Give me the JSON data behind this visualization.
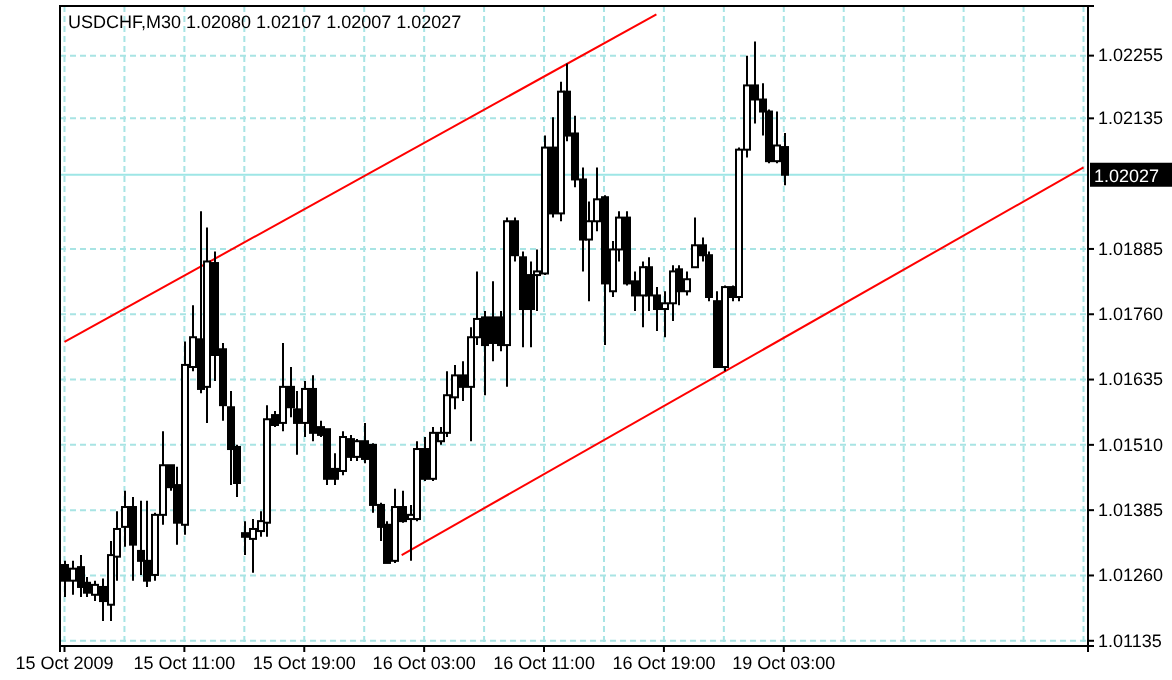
{
  "chart_data": {
    "type": "candlestick",
    "title": "USDCHF,M30  1.02080 1.02107 1.02007 1.02027",
    "categories": [
      "15 Oct 2009",
      null,
      null,
      null,
      null,
      null,
      null,
      null,
      null,
      null,
      null,
      null,
      null,
      null,
      null,
      null,
      "15 Oct 11:00",
      null,
      null,
      null,
      null,
      null,
      null,
      null,
      null,
      null,
      null,
      null,
      null,
      null,
      null,
      null,
      "15 Oct 19:00",
      null,
      null,
      null,
      null,
      null,
      null,
      null,
      null,
      null,
      null,
      null,
      null,
      null,
      null,
      null,
      "16 Oct 03:00",
      null,
      null,
      null,
      null,
      null,
      null,
      null,
      null,
      null,
      null,
      null,
      null,
      null,
      null,
      null,
      "16 Oct 11:00",
      null,
      null,
      null,
      null,
      null,
      null,
      null,
      null,
      null,
      null,
      null,
      null,
      null,
      null,
      null,
      "16 Oct 19:00",
      null,
      null,
      null,
      null,
      null,
      null,
      null,
      null,
      null,
      null,
      null,
      null,
      null,
      null,
      null,
      "19 Oct 03:00",
      null,
      null,
      null,
      null,
      null,
      null,
      null,
      null,
      null,
      null,
      null,
      null,
      null,
      null,
      null,
      null,
      null,
      null,
      null,
      null,
      null,
      null,
      null,
      null,
      null,
      null,
      null,
      null,
      null,
      null,
      null,
      null,
      null,
      null,
      null,
      null,
      null,
      null,
      null,
      null
    ],
    "ohlc": [
      [
        1.0128,
        1.01288,
        1.01219,
        1.0125
      ],
      [
        1.0125,
        1.01288,
        1.01223,
        1.01273
      ],
      [
        1.01276,
        1.01299,
        1.01219,
        1.01238
      ],
      [
        1.01246,
        1.01257,
        1.01219,
        1.01227
      ],
      [
        1.01223,
        1.0125,
        1.01211,
        1.01242
      ],
      [
        1.01238,
        1.01254,
        1.01173,
        1.01211
      ],
      [
        1.01204,
        1.01326,
        1.01173,
        1.01299
      ],
      [
        1.01296,
        1.01383,
        1.0125,
        1.01349
      ],
      [
        1.01353,
        1.01422,
        1.01315,
        1.01391
      ],
      [
        1.01391,
        1.0141,
        1.0125,
        1.01319
      ],
      [
        1.01307,
        1.01403,
        1.01261,
        1.01288
      ],
      [
        1.01288,
        1.01403,
        1.01238,
        1.0125
      ],
      [
        1.01261,
        1.0138,
        1.0125,
        1.01376
      ],
      [
        1.01376,
        1.01536,
        1.01357,
        1.01471
      ],
      [
        1.01471,
        1.01471,
        1.01422,
        1.01429
      ],
      [
        1.01433,
        1.01468,
        1.01319,
        1.01361
      ],
      [
        1.01357,
        1.01708,
        1.01338,
        1.01663
      ],
      [
        1.01659,
        1.01777,
        1.01651,
        1.01716
      ],
      [
        1.01712,
        1.01957,
        1.01609,
        1.01617
      ],
      [
        1.01621,
        1.01926,
        1.01552,
        1.01861
      ],
      [
        1.01858,
        1.0188,
        1.01632,
        1.01682
      ],
      [
        1.01693,
        1.01705,
        1.01556,
        1.01586
      ],
      [
        1.01582,
        1.01613,
        1.01433,
        1.01502
      ],
      [
        1.01506,
        1.0151,
        1.0141,
        1.01437
      ],
      [
        1.01341,
        1.01364,
        1.01299,
        1.01334
      ],
      [
        1.0133,
        1.01368,
        1.01265,
        1.01349
      ],
      [
        1.01345,
        1.01383,
        1.01334,
        1.01364
      ],
      [
        1.01361,
        1.01586,
        1.01334,
        1.01559
      ],
      [
        1.01567,
        1.01575,
        1.01544,
        1.01548
      ],
      [
        1.01552,
        1.01705,
        1.01536,
        1.01621
      ],
      [
        1.01621,
        1.01659,
        1.01563,
        1.01582
      ],
      [
        1.01578,
        1.01613,
        1.01491,
        1.01552
      ],
      [
        1.01552,
        1.01632,
        1.01525,
        1.01617
      ],
      [
        1.01617,
        1.01643,
        1.01517,
        1.01533
      ],
      [
        1.01544,
        1.01556,
        1.01525,
        1.01529
      ],
      [
        1.0154,
        1.0154,
        1.01433,
        1.01445
      ],
      [
        1.01464,
        1.01494,
        1.01433,
        1.01445
      ],
      [
        1.0146,
        1.01536,
        1.01452,
        1.01525
      ],
      [
        1.01521,
        1.01529,
        1.01479,
        1.01487
      ],
      [
        1.01487,
        1.01521,
        1.01479,
        1.01517
      ],
      [
        1.01517,
        1.01552,
        1.01475,
        1.01483
      ],
      [
        1.0151,
        1.01513,
        1.0138,
        1.01395
      ],
      [
        1.01395,
        1.01399,
        1.01326,
        1.01353
      ],
      [
        1.01357,
        1.01364,
        1.01284,
        1.01284
      ],
      [
        1.01288,
        1.01426,
        1.01284,
        1.01391
      ],
      [
        1.01391,
        1.01422,
        1.01361,
        1.01364
      ],
      [
        1.01368,
        1.01395,
        1.01288,
        1.01376
      ],
      [
        1.01368,
        1.01517,
        1.01364,
        1.01502
      ],
      [
        1.01502,
        1.01525,
        1.01441,
        1.01445
      ],
      [
        1.01445,
        1.01544,
        1.01441,
        1.01533
      ],
      [
        1.01517,
        1.01544,
        1.0151,
        1.01533
      ],
      [
        1.01533,
        1.01651,
        1.01525,
        1.01605
      ],
      [
        1.01601,
        1.01663,
        1.01578,
        1.01643
      ],
      [
        1.01643,
        1.0167,
        1.01594,
        1.01621
      ],
      [
        1.01621,
        1.01735,
        1.01517,
        1.01716
      ],
      [
        1.01716,
        1.01842,
        1.01701,
        1.01751
      ],
      [
        1.01754,
        1.01766,
        1.01605,
        1.01701
      ],
      [
        1.01754,
        1.01823,
        1.0167,
        1.01705
      ],
      [
        1.01754,
        1.01766,
        1.01689,
        1.01701
      ],
      [
        1.01701,
        1.01945,
        1.01621,
        1.01938
      ],
      [
        1.01938,
        1.01945,
        1.01861,
        1.01873
      ],
      [
        1.01869,
        1.0188,
        1.01697,
        1.0177
      ],
      [
        1.01835,
        1.01861,
        1.01697,
        1.0177
      ],
      [
        1.01835,
        1.01884,
        1.01766,
        1.01842
      ],
      [
        1.01838,
        1.02102,
        1.01835,
        1.02079
      ],
      [
        1.02079,
        1.02137,
        1.01945,
        1.01953
      ],
      [
        1.01953,
        1.02205,
        1.01938,
        1.02186
      ],
      [
        1.02186,
        1.0224,
        1.02091,
        1.02102
      ],
      [
        1.02106,
        1.0214,
        1.02003,
        1.02018
      ],
      [
        1.02018,
        1.02041,
        1.01842,
        1.01903
      ],
      [
        1.01903,
        1.01976,
        1.01785,
        1.01938
      ],
      [
        1.01938,
        1.02041,
        1.01919,
        1.0198
      ],
      [
        1.01984,
        1.01988,
        1.01701,
        1.01819
      ],
      [
        1.01804,
        1.019,
        1.01793,
        1.01884
      ],
      [
        1.01884,
        1.01957,
        1.01861,
        1.01945
      ],
      [
        1.01945,
        1.01957,
        1.01815,
        1.01819
      ],
      [
        1.01823,
        1.01842,
        1.01766,
        1.01796
      ],
      [
        1.01796,
        1.01861,
        1.01735,
        1.0185
      ],
      [
        1.0185,
        1.01869,
        1.01766,
        1.01796
      ],
      [
        1.01796,
        1.01812,
        1.01728,
        1.0177
      ],
      [
        1.0177,
        1.01804,
        1.01716,
        1.01781
      ],
      [
        1.01781,
        1.01854,
        1.01747,
        1.01842
      ],
      [
        1.01846,
        1.01854,
        1.01777,
        1.01804
      ],
      [
        1.01804,
        1.01842,
        1.01796,
        1.01827
      ],
      [
        1.0185,
        1.01945,
        1.0185,
        1.01892
      ],
      [
        1.01892,
        1.01907,
        1.01861,
        1.01873
      ],
      [
        1.01873,
        1.0188,
        1.01785,
        1.01793
      ],
      [
        1.01785,
        1.01804,
        1.01659,
        1.01659
      ],
      [
        1.01659,
        1.01815,
        1.01651,
        1.01812
      ],
      [
        1.01812,
        1.01815,
        1.01785,
        1.01793
      ],
      [
        1.01793,
        1.02079,
        1.01785,
        1.02075
      ],
      [
        1.02075,
        1.02255,
        1.0206,
        1.02198
      ],
      [
        1.02198,
        1.02282,
        1.02125,
        1.02171
      ],
      [
        1.02171,
        1.02202,
        1.02102,
        1.02148
      ],
      [
        1.02148,
        1.02152,
        1.02049,
        1.02053
      ],
      [
        1.02053,
        1.02148,
        1.02049,
        1.02083
      ],
      [
        1.0208,
        1.02107,
        1.02007,
        1.02027
      ],
      null,
      null,
      null,
      null,
      null,
      null,
      null,
      null,
      null,
      null,
      null,
      null,
      null,
      null,
      null,
      null,
      null,
      null,
      null,
      null,
      null,
      null,
      null,
      null,
      null,
      null,
      null,
      null,
      null,
      null,
      null,
      null,
      null,
      null,
      null,
      null,
      null,
      null,
      null,
      null
    ],
    "series": [
      {
        "type": "line",
        "values": [
          1.01707,
          null,
          null,
          null,
          null,
          null,
          null,
          null,
          null,
          null,
          null,
          null,
          null,
          null,
          null,
          null,
          null,
          null,
          null,
          null,
          null,
          null,
          null,
          null,
          null,
          null,
          null,
          null,
          null,
          null,
          null,
          null,
          null,
          null,
          null,
          null,
          null,
          null,
          null,
          null,
          null,
          null,
          null,
          null,
          null,
          null,
          null,
          null,
          null,
          null,
          null,
          null,
          null,
          null,
          null,
          null,
          null,
          null,
          null,
          null,
          null,
          null,
          null,
          null,
          null,
          null,
          null,
          null,
          null,
          null,
          null,
          null,
          null,
          null,
          null,
          null,
          null,
          null,
          null,
          1.02334,
          null,
          null,
          null,
          null,
          null,
          null,
          null,
          null,
          null,
          null,
          null,
          null,
          null,
          null,
          null,
          null,
          null,
          null,
          null,
          null,
          null,
          null,
          null,
          null,
          null,
          null,
          null,
          null,
          null,
          null,
          null,
          null,
          null,
          null,
          null,
          null,
          null,
          null,
          null,
          null,
          null,
          null,
          null,
          null,
          null,
          null,
          null,
          null,
          null,
          null,
          null,
          null,
          null,
          null,
          null,
          null,
          null
        ],
        "color": "#ff0000"
      },
      {
        "type": "line",
        "values": [
          null,
          null,
          null,
          null,
          null,
          null,
          null,
          null,
          null,
          null,
          null,
          null,
          null,
          null,
          null,
          null,
          null,
          null,
          null,
          null,
          null,
          null,
          null,
          null,
          null,
          null,
          null,
          null,
          null,
          null,
          null,
          null,
          null,
          null,
          null,
          null,
          null,
          null,
          null,
          null,
          null,
          null,
          null,
          null,
          null,
          1.01299,
          null,
          null,
          null,
          null,
          null,
          null,
          null,
          null,
          null,
          null,
          null,
          null,
          null,
          null,
          null,
          null,
          null,
          null,
          null,
          null,
          null,
          null,
          null,
          null,
          null,
          null,
          null,
          null,
          null,
          null,
          null,
          null,
          null,
          null,
          null,
          null,
          null,
          null,
          null,
          null,
          null,
          null,
          null,
          null,
          null,
          null,
          null,
          null,
          null,
          null,
          null,
          null,
          null,
          null,
          null,
          null,
          null,
          null,
          null,
          null,
          null,
          null,
          null,
          null,
          null,
          null,
          null,
          null,
          null,
          null,
          null,
          null,
          null,
          null,
          null,
          null,
          null,
          null,
          null,
          null,
          null,
          null,
          null,
          null,
          null,
          null,
          null,
          null,
          null,
          null,
          1.02041
        ],
        "color": "#ff0000"
      }
    ],
    "ylim": [
      1.01125,
      1.0235
    ],
    "yticks": [
      {
        "value": 1.01135,
        "label": "1.01135"
      },
      {
        "value": 1.0126,
        "label": "1.01260"
      },
      {
        "value": 1.01385,
        "label": "1.01385"
      },
      {
        "value": 1.0151,
        "label": "1.01510"
      },
      {
        "value": 1.01635,
        "label": "1.01635"
      },
      {
        "value": 1.0176,
        "label": "1.01760"
      },
      {
        "value": 1.01885,
        "label": "1.01885"
      },
      {
        "value": 1.02135,
        "label": "1.02135"
      },
      {
        "value": 1.02255,
        "label": "1.02255"
      }
    ],
    "ref_lines": [
      {
        "axis": "y",
        "value": 1.02027,
        "label": "1.02027",
        "color": "#9ee6e6",
        "line_style": "solid"
      }
    ],
    "grid": true
  }
}
